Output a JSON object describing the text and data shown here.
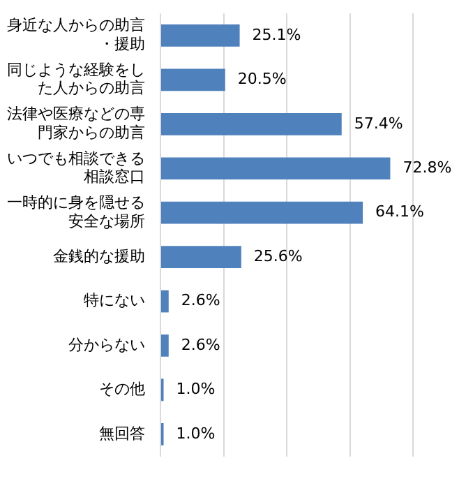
{
  "chart_data": {
    "type": "bar",
    "orientation": "horizontal",
    "categories": [
      "身近な人からの助言・援助",
      "同じような経験をした人からの助言",
      "法律や医療などの専門家からの助言",
      "いつでも相談できる相談窓口",
      "一時的に身を隠せる安全な場所",
      "金銭的な援助",
      "特にない",
      "分からない",
      "その他",
      "無回答"
    ],
    "values": [
      25.1,
      20.5,
      57.4,
      72.8,
      64.1,
      25.6,
      2.6,
      2.6,
      1.0,
      1.0
    ],
    "value_labels": [
      "25.1%",
      "20.5%",
      "57.4%",
      "72.8%",
      "64.1%",
      "25.6%",
      "2.6%",
      "2.6%",
      "1.0%",
      "1.0%"
    ],
    "color": "#4f81bd",
    "xlim": [
      0,
      80
    ],
    "xticks": [
      {
        "value": 0,
        "label": null
      },
      {
        "value": 20,
        "label": null
      },
      {
        "value": 40,
        "label": null
      },
      {
        "value": 60,
        "label": null
      },
      {
        "value": 80,
        "label": null
      }
    ],
    "grid": "x",
    "tick_labels": "y",
    "legend": false
  }
}
